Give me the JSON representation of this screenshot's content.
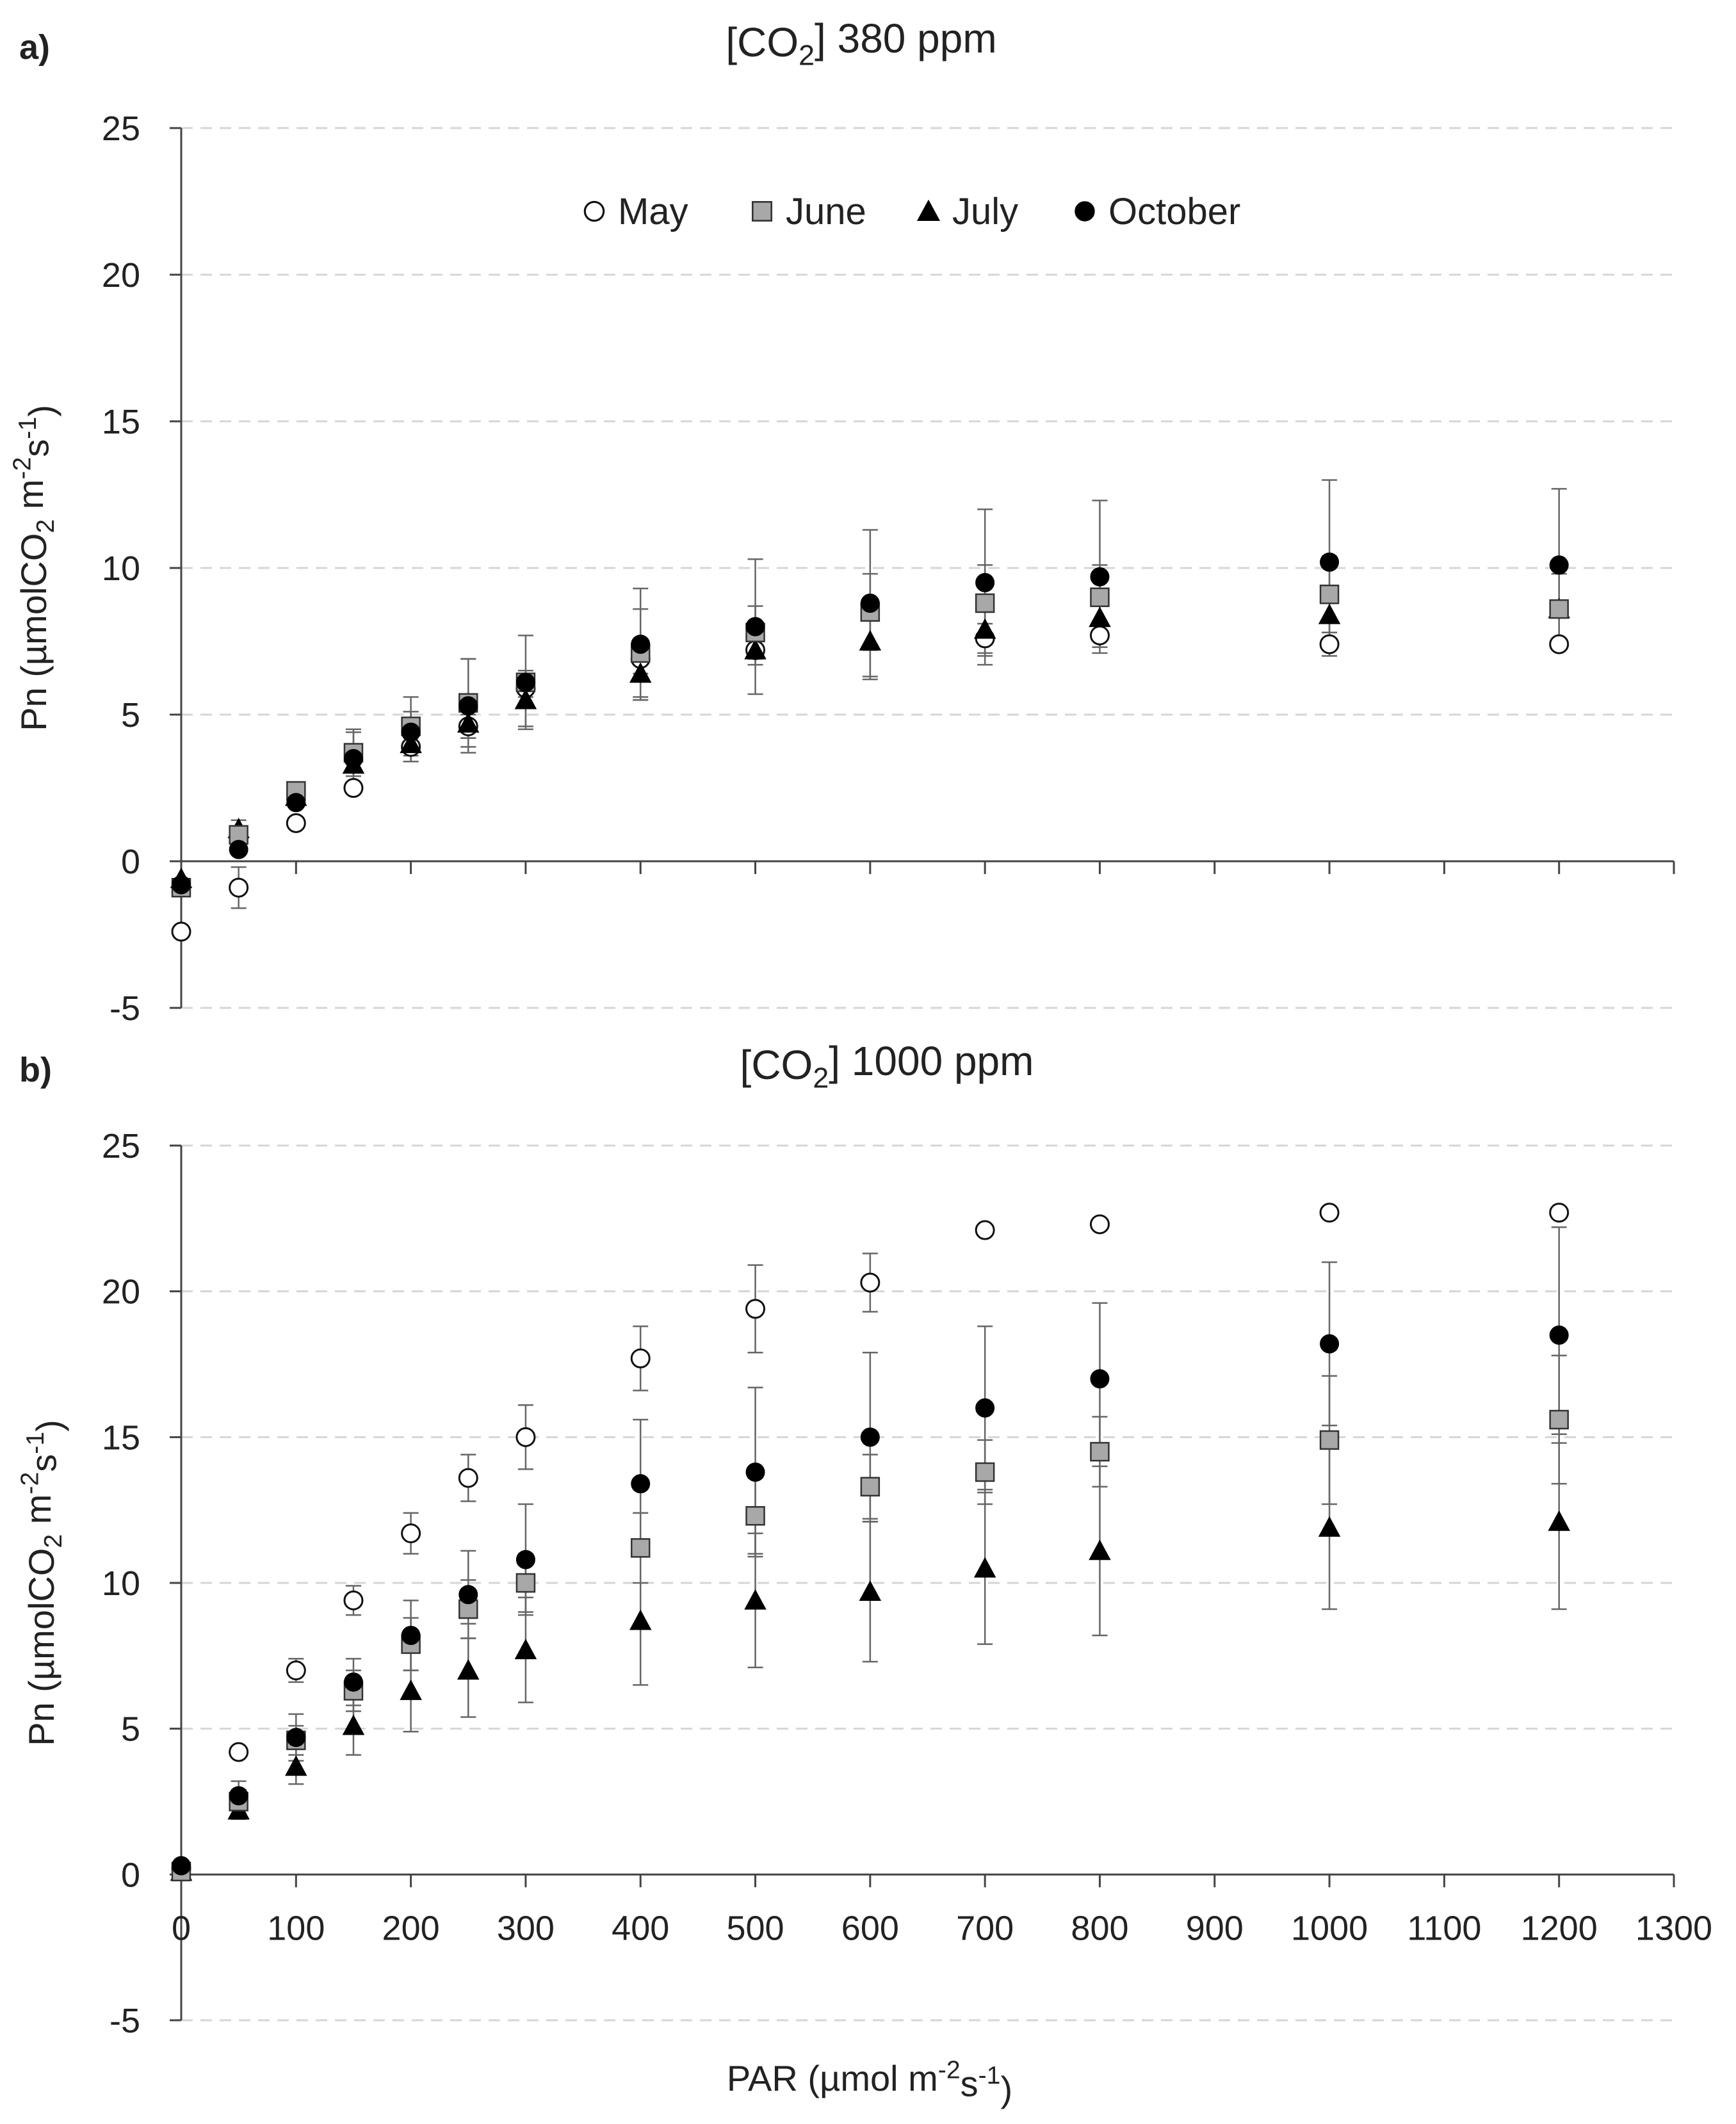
{
  "chart_data": [
    {
      "panel_letter": "a)",
      "title_parts": [
        "[CO",
        "2",
        "] 380 ppm"
      ],
      "type": "scatter",
      "xlim": [
        0,
        1300
      ],
      "ylim": [
        -5,
        25
      ],
      "yticks": [
        -5,
        0,
        5,
        10,
        15,
        20,
        25
      ],
      "xticks": [
        0,
        100,
        200,
        300,
        400,
        500,
        600,
        700,
        800,
        900,
        1000,
        1100,
        1200,
        1300
      ],
      "show_xtick_labels": false,
      "ylabel_parts": [
        "Pn (µmolCO",
        "2",
        " m",
        "-2",
        "s",
        "-1",
        ")"
      ],
      "gridlines": "horizontal dashed",
      "legend": {
        "placement": "top-center",
        "entries": [
          {
            "name": "May",
            "marker": "open-circle"
          },
          {
            "name": "June",
            "marker": "grey-square"
          },
          {
            "name": "July",
            "marker": "black-triangle"
          },
          {
            "name": "October",
            "marker": "black-circle"
          }
        ]
      },
      "series": [
        {
          "name": "May",
          "marker": "open-circle",
          "x": [
            0,
            50,
            100,
            150,
            200,
            250,
            300,
            400,
            500,
            700,
            800,
            1000,
            1200
          ],
          "y": [
            -2.4,
            -0.9,
            1.3,
            2.5,
            3.9,
            4.6,
            5.9,
            6.9,
            7.2,
            7.6,
            7.7,
            7.4,
            7.4
          ],
          "err": [
            0,
            0.7,
            0,
            0,
            0.5,
            0.4,
            0.3,
            0.5,
            0.5,
            0.5,
            0.4,
            0.4,
            0
          ]
        },
        {
          "name": "June",
          "marker": "grey-square",
          "x": [
            0,
            50,
            100,
            150,
            200,
            250,
            300,
            400,
            500,
            600,
            700,
            800,
            1000,
            1200
          ],
          "y": [
            -0.9,
            0.9,
            2.4,
            3.7,
            4.6,
            5.4,
            6.1,
            7.1,
            7.8,
            8.5,
            8.8,
            9.0,
            9.1,
            8.6
          ],
          "err": [
            0,
            0.5,
            0.3,
            0.8,
            1.0,
            1.5,
            0.4,
            1.5,
            0.9,
            1.3,
            1.3,
            1.1,
            1.3,
            1.2
          ]
        },
        {
          "name": "July",
          "marker": "black-triangle",
          "x": [
            0,
            50,
            100,
            150,
            200,
            250,
            300,
            400,
            500,
            600,
            700,
            800,
            1000,
            1200
          ],
          "y": [
            -0.6,
            1.1,
            2.2,
            3.3,
            4.0,
            4.7,
            5.5,
            6.4,
            7.2,
            7.5,
            7.9,
            8.3,
            8.4,
            8.6
          ],
          "err": [
            0,
            0,
            0,
            0,
            0.6,
            0.5,
            0.9,
            0.9,
            0,
            1.3,
            1.2,
            0,
            0,
            0
          ]
        },
        {
          "name": "October",
          "marker": "black-circle",
          "x": [
            0,
            50,
            100,
            150,
            200,
            250,
            300,
            400,
            500,
            600,
            700,
            800,
            1000,
            1200
          ],
          "y": [
            -0.8,
            0.4,
            2.0,
            3.5,
            4.4,
            5.3,
            6.1,
            7.4,
            8.0,
            8.8,
            9.5,
            9.7,
            10.2,
            10.1
          ],
          "err": [
            0,
            0,
            0,
            0.9,
            0.7,
            1.6,
            1.6,
            1.9,
            2.3,
            2.5,
            2.5,
            2.6,
            2.8,
            2.6
          ]
        }
      ]
    },
    {
      "panel_letter": "b)",
      "title_parts": [
        "[CO",
        "2",
        "] 1000 ppm"
      ],
      "type": "scatter",
      "xlim": [
        0,
        1300
      ],
      "ylim": [
        -5,
        25
      ],
      "yticks": [
        -5,
        0,
        5,
        10,
        15,
        20,
        25
      ],
      "xticks": [
        0,
        100,
        200,
        300,
        400,
        500,
        600,
        700,
        800,
        900,
        1000,
        1100,
        1200,
        1300
      ],
      "show_xtick_labels": true,
      "ylabel_parts": [
        "Pn (µmolCO",
        "2",
        " m",
        "-2",
        "s",
        "-1",
        ")"
      ],
      "xlabel_parts": [
        "PAR (µmol m",
        "-2",
        "s",
        "-1",
        ")"
      ],
      "gridlines": "horizontal dashed",
      "series": [
        {
          "name": "May",
          "marker": "open-circle",
          "x": [
            0,
            50,
            100,
            150,
            200,
            250,
            300,
            400,
            500,
            600,
            700,
            800,
            1000,
            1200
          ],
          "y": [
            0.2,
            4.2,
            7.0,
            9.4,
            11.7,
            13.6,
            15.0,
            17.7,
            19.4,
            20.3,
            22.1,
            22.3,
            22.7,
            22.7
          ],
          "err": [
            0,
            0,
            0.4,
            0.5,
            0.7,
            0.8,
            1.1,
            1.1,
            1.5,
            1.0,
            0,
            0,
            0,
            0
          ]
        },
        {
          "name": "June",
          "marker": "grey-square",
          "x": [
            0,
            50,
            100,
            150,
            200,
            250,
            300,
            400,
            500,
            600,
            700,
            800,
            1000,
            1200
          ],
          "y": [
            0.1,
            2.5,
            4.6,
            6.3,
            7.9,
            9.1,
            10.0,
            11.2,
            12.3,
            13.3,
            13.8,
            14.5,
            14.9,
            15.6
          ],
          "err": [
            0,
            0.4,
            0.5,
            0.7,
            0.9,
            1.0,
            1.0,
            1.2,
            1.3,
            1.1,
            1.1,
            1.2,
            2.2,
            2.2
          ]
        },
        {
          "name": "July",
          "marker": "black-triangle",
          "x": [
            0,
            50,
            100,
            150,
            200,
            250,
            300,
            400,
            500,
            600,
            700,
            800,
            1000,
            1200
          ],
          "y": [
            0.1,
            2.2,
            3.7,
            5.1,
            6.3,
            7.0,
            7.7,
            8.7,
            9.4,
            9.7,
            10.5,
            11.1,
            11.9,
            12.1
          ],
          "err": [
            0,
            0.3,
            0.6,
            1.0,
            1.4,
            1.6,
            1.8,
            2.2,
            2.3,
            2.4,
            2.6,
            2.9,
            2.8,
            3.0
          ]
        },
        {
          "name": "October",
          "marker": "black-circle",
          "x": [
            0,
            50,
            100,
            150,
            200,
            250,
            300,
            400,
            500,
            600,
            700,
            800,
            1000,
            1200
          ],
          "y": [
            0.3,
            2.7,
            4.7,
            6.6,
            8.2,
            9.6,
            10.8,
            13.4,
            13.8,
            15.0,
            16.0,
            17.0,
            18.2,
            18.5
          ],
          "err": [
            0,
            0.5,
            0.8,
            0.8,
            1.2,
            1.5,
            1.9,
            2.2,
            2.9,
            2.9,
            2.8,
            2.6,
            2.8,
            3.7
          ]
        }
      ]
    }
  ]
}
